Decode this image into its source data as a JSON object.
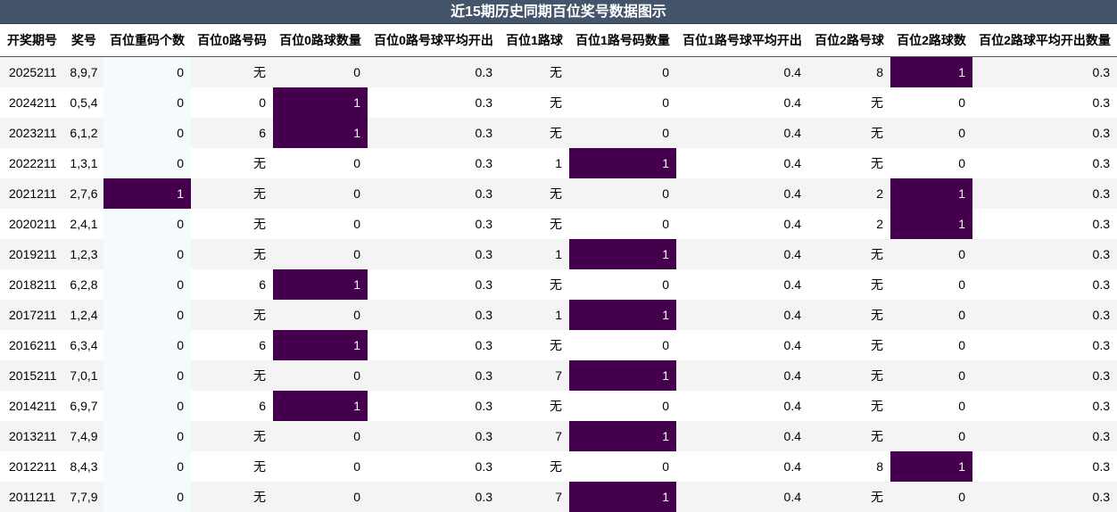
{
  "title": "近15期历史同期百位奖号数据图示",
  "colors": {
    "header_bg": "#44546a",
    "highlight": "#44004c"
  },
  "columns": [
    "开奖期号",
    "奖号",
    "百位重码个数",
    "百位0路号码",
    "百位0路球数量",
    "百位0路号球平均开出",
    "百位1路球",
    "百位1路号码数量",
    "百位1路号球平均开出",
    "百位2路号球",
    "百位2路球数",
    "百位2路球平均开出数量"
  ],
  "rows": [
    [
      "2025211",
      "8,9,7",
      "0",
      "无",
      "0",
      "0.3",
      "无",
      "0",
      "0.4",
      "8",
      "1",
      "0.3"
    ],
    [
      "2024211",
      "0,5,4",
      "0",
      "0",
      "1",
      "0.3",
      "无",
      "0",
      "0.4",
      "无",
      "0",
      "0.3"
    ],
    [
      "2023211",
      "6,1,2",
      "0",
      "6",
      "1",
      "0.3",
      "无",
      "0",
      "0.4",
      "无",
      "0",
      "0.3"
    ],
    [
      "2022211",
      "1,3,1",
      "0",
      "无",
      "0",
      "0.3",
      "1",
      "1",
      "0.4",
      "无",
      "0",
      "0.3"
    ],
    [
      "2021211",
      "2,7,6",
      "1",
      "无",
      "0",
      "0.3",
      "无",
      "0",
      "0.4",
      "2",
      "1",
      "0.3"
    ],
    [
      "2020211",
      "2,4,1",
      "0",
      "无",
      "0",
      "0.3",
      "无",
      "0",
      "0.4",
      "2",
      "1",
      "0.3"
    ],
    [
      "2019211",
      "1,2,3",
      "0",
      "无",
      "0",
      "0.3",
      "1",
      "1",
      "0.4",
      "无",
      "0",
      "0.3"
    ],
    [
      "2018211",
      "6,2,8",
      "0",
      "6",
      "1",
      "0.3",
      "无",
      "0",
      "0.4",
      "无",
      "0",
      "0.3"
    ],
    [
      "2017211",
      "1,2,4",
      "0",
      "无",
      "0",
      "0.3",
      "1",
      "1",
      "0.4",
      "无",
      "0",
      "0.3"
    ],
    [
      "2016211",
      "6,3,4",
      "0",
      "6",
      "1",
      "0.3",
      "无",
      "0",
      "0.4",
      "无",
      "0",
      "0.3"
    ],
    [
      "2015211",
      "7,0,1",
      "0",
      "无",
      "0",
      "0.3",
      "7",
      "1",
      "0.4",
      "无",
      "0",
      "0.3"
    ],
    [
      "2014211",
      "6,9,7",
      "0",
      "6",
      "1",
      "0.3",
      "无",
      "0",
      "0.4",
      "无",
      "0",
      "0.3"
    ],
    [
      "2013211",
      "7,4,9",
      "0",
      "无",
      "0",
      "0.3",
      "7",
      "1",
      "0.4",
      "无",
      "0",
      "0.3"
    ],
    [
      "2012211",
      "8,4,3",
      "0",
      "无",
      "0",
      "0.3",
      "无",
      "0",
      "0.4",
      "8",
      "1",
      "0.3"
    ],
    [
      "2011211",
      "7,7,9",
      "0",
      "无",
      "0",
      "0.3",
      "7",
      "1",
      "0.4",
      "无",
      "0",
      "0.3"
    ]
  ]
}
